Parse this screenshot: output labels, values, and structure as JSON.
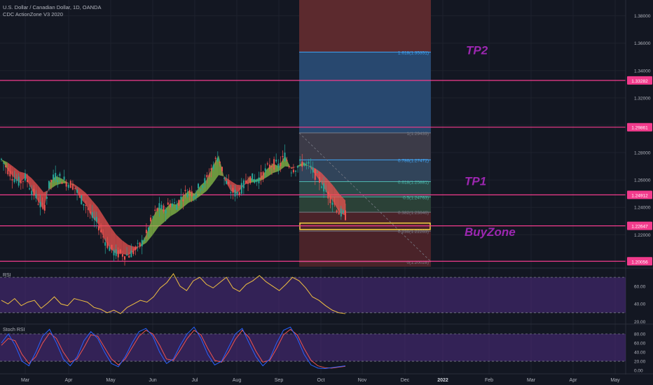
{
  "header": {
    "symbol_line": "U.S. Dollar / Canadian Dollar, 1D, OANDA",
    "indicator": "CDC ActionZone V3 2020"
  },
  "panes": {
    "rsi_label": "RSI",
    "stoch_label": "Stoch RSI"
  },
  "colors": {
    "background": "#131722",
    "grid": "#1e222d",
    "hline": "#f23b8c",
    "bull_fill": "#8bc34a",
    "bear_fill": "#ef5350",
    "up_candle": "#26a69a",
    "down_candle": "#ef5350",
    "fib_blue": "#2962ff",
    "fib_label": "#b2b5be",
    "annotation": "#9c27b0",
    "rsi_line": "#f0c040",
    "pane_fill": "#4a2a7a",
    "stoch_k": "#2962ff",
    "stoch_d": "#ef5350",
    "buyzone_box": "#f5d142"
  },
  "chart_data": {
    "type": "candlestick",
    "ylim": [
      1.1966,
      1.3916
    ],
    "y_ticks": [
      "1.38000",
      "1.36000",
      "1.34000",
      "1.32000",
      "1.30000",
      "1.28000",
      "1.26000",
      "1.24000",
      "1.22000"
    ],
    "x_ticks": [
      "Mar",
      "Apr",
      "May",
      "Jun",
      "Jul",
      "Aug",
      "Sep",
      "Oct",
      "Nov",
      "Dec",
      "2022",
      "Feb",
      "Mar",
      "Apr",
      "May"
    ],
    "price_path": [
      1.275,
      1.268,
      1.262,
      1.258,
      1.262,
      1.253,
      1.245,
      1.238,
      1.258,
      1.263,
      1.261,
      1.258,
      1.256,
      1.247,
      1.242,
      1.233,
      1.228,
      1.217,
      1.21,
      1.206,
      1.206,
      1.205,
      1.208,
      1.212,
      1.22,
      1.232,
      1.24,
      1.238,
      1.243,
      1.242,
      1.248,
      1.252,
      1.25,
      1.256,
      1.26,
      1.27,
      1.278,
      1.26,
      1.252,
      1.25,
      1.255,
      1.262,
      1.26,
      1.262,
      1.268,
      1.272,
      1.27,
      1.278,
      1.268,
      1.27,
      1.273,
      1.27,
      1.264,
      1.258,
      1.25,
      1.244,
      1.236,
      1.234
    ],
    "horizontal_levels": [
      "1.33282",
      "1.29861",
      "1.24912",
      "1.22647",
      "1.20056"
    ],
    "fib_levels": [
      {
        "ratio": "1.618",
        "price": "1.35351",
        "label": "1.618(1.35351)"
      },
      {
        "ratio": "1",
        "price": "1.29439",
        "label": "1(1.29439)"
      },
      {
        "ratio": "0.786",
        "price": "1.27472",
        "label": "0.786(1.27472)"
      },
      {
        "ratio": "0.618",
        "price": "1.25881",
        "label": "0.618(1.25881)"
      },
      {
        "ratio": "0.5",
        "price": "1.24763",
        "label": "0.5(1.24763)"
      },
      {
        "ratio": "0.382",
        "price": "1.23646",
        "label": "0.382(1.23646)"
      },
      {
        "ratio": "0.236",
        "price": "1.22263",
        "label": "0.236(1.22263)"
      },
      {
        "ratio": "0",
        "price": "1.20028",
        "label": "0(1.20028)"
      }
    ],
    "annotations": [
      "TP2",
      "TP1",
      "BuyZone"
    ],
    "rsi": {
      "ticks": [
        "60.00",
        "40.00",
        "20.00"
      ],
      "upper": 70,
      "lower": 30,
      "ylim": [
        18,
        78
      ],
      "values": [
        44,
        40,
        46,
        38,
        42,
        44,
        35,
        41,
        48,
        40,
        38,
        46,
        44,
        42,
        36,
        34,
        30,
        33,
        29,
        36,
        40,
        44,
        42,
        48,
        58,
        64,
        74,
        60,
        55,
        66,
        70,
        62,
        58,
        64,
        70,
        58,
        54,
        62,
        66,
        72,
        65,
        60,
        55,
        62,
        70,
        66,
        58,
        48,
        44,
        38,
        33,
        30,
        29
      ]
    },
    "stoch_rsi": {
      "ticks": [
        "80.00",
        "60.00",
        "40.00",
        "20.00",
        "0.00"
      ],
      "upper": 80,
      "lower": 20,
      "ylim": [
        -6,
        100
      ],
      "k": [
        60,
        80,
        55,
        20,
        10,
        40,
        75,
        90,
        60,
        25,
        10,
        30,
        65,
        85,
        70,
        40,
        15,
        8,
        30,
        60,
        85,
        92,
        75,
        40,
        15,
        25,
        55,
        80,
        95,
        70,
        35,
        12,
        20,
        50,
        80,
        92,
        60,
        30,
        10,
        25,
        60,
        88,
        95,
        70,
        35,
        12,
        5,
        4,
        6,
        8,
        10
      ],
      "d": [
        55,
        70,
        65,
        35,
        15,
        30,
        60,
        82,
        70,
        40,
        18,
        25,
        50,
        78,
        75,
        50,
        25,
        12,
        25,
        50,
        75,
        88,
        80,
        55,
        25,
        22,
        45,
        70,
        88,
        78,
        48,
        22,
        18,
        40,
        68,
        88,
        72,
        42,
        18,
        22,
        48,
        78,
        90,
        78,
        48,
        22,
        10,
        6,
        5,
        7,
        9
      ]
    }
  }
}
